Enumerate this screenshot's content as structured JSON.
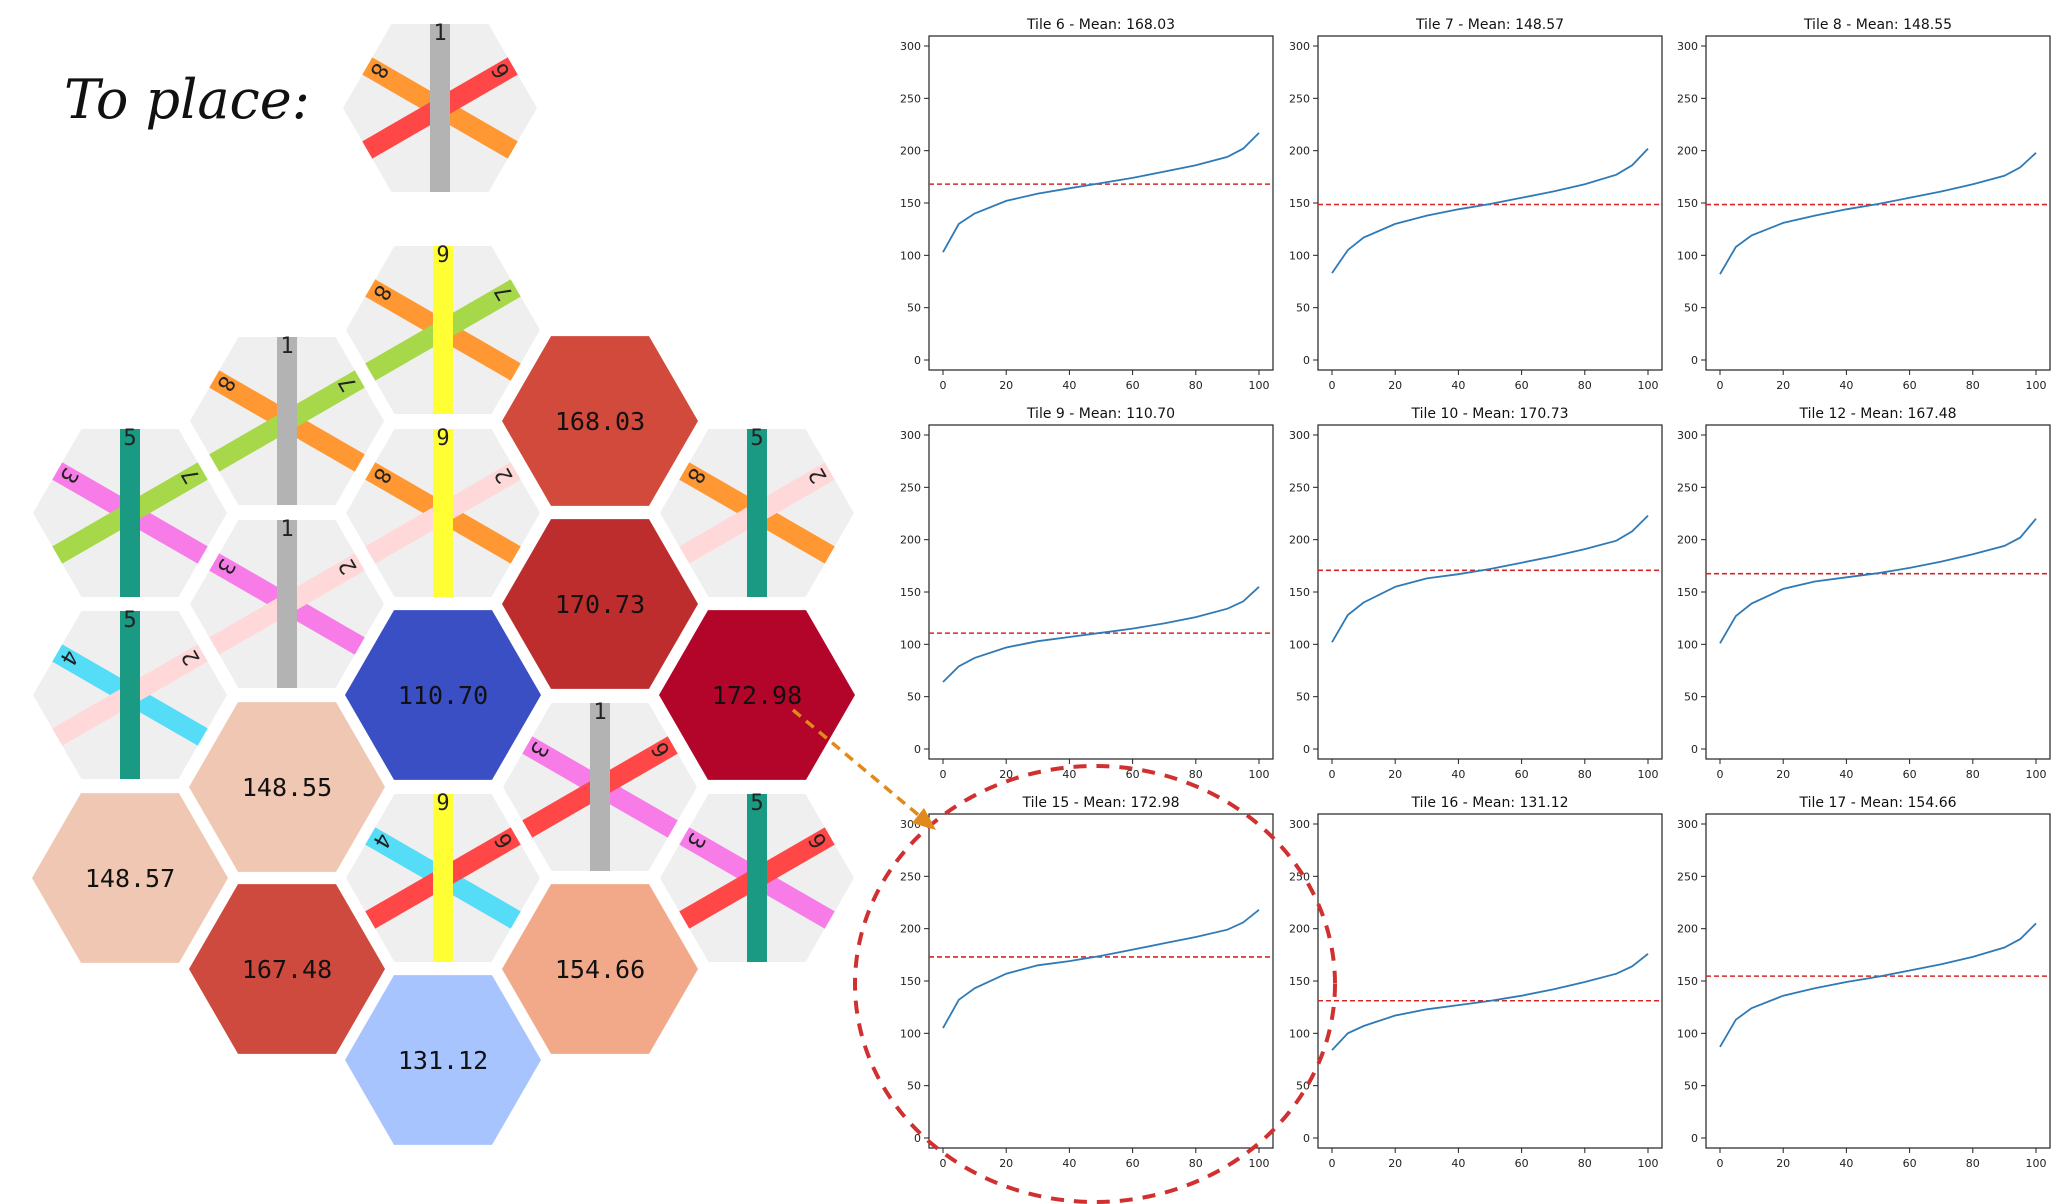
{
  "to_place_label": "To place:",
  "hex_colors": {
    "empty_tile": "#efefef",
    "strip_gray": "#b3b3b3",
    "strip_yellow": "#ffff33",
    "strip_teal": "#1a9a83",
    "strip_orange": "#ff9833",
    "strip_lime": "#a6d84a",
    "strip_pink": "#f77ce8",
    "strip_salmon": "#ffd9d9",
    "strip_red": "#ff4747",
    "strip_cyan": "#55dcf7",
    "mean_110": "#3a4fc4",
    "mean_131": "#a8c4ff",
    "mean_148": "#f0c7b2",
    "mean_154": "#f2a98a",
    "mean_167": "#cf4a3e",
    "mean_168": "#d24a3c",
    "mean_170": "#be2d2d",
    "mean_172": "#b3052a"
  },
  "piece_to_place": {
    "vertical": "1",
    "left_diag": "8",
    "right_diag": "6"
  },
  "board": {
    "strip_tiles": [
      {
        "v": "9",
        "l": "8",
        "r": "7"
      },
      {
        "v": "1",
        "l": "8",
        "r": "7"
      },
      {
        "v": "9",
        "l": "8",
        "r": "2"
      },
      {
        "v": "5",
        "l": "3",
        "r": "7"
      },
      {
        "v": "5",
        "l": "8",
        "r": "2"
      },
      {
        "v": "1",
        "l": "3",
        "r": "2"
      },
      {
        "v": "5",
        "l": "4",
        "r": "2"
      },
      {
        "v": "1",
        "l": "3",
        "r": "6"
      },
      {
        "v": "9",
        "l": "4",
        "r": "6"
      },
      {
        "v": "5",
        "l": "3",
        "r": "6"
      }
    ],
    "mean_tiles": [
      "168.03",
      "170.73",
      "110.70",
      "172.98",
      "148.55",
      "148.57",
      "167.48",
      "154.66",
      "131.12"
    ]
  },
  "chart_data": [
    {
      "type": "line",
      "title": "Tile 6 - Mean: 168.03",
      "mean": 168.03,
      "ylim": [
        0,
        300
      ],
      "xlim": [
        0,
        100
      ],
      "x": [
        0,
        5,
        10,
        20,
        30,
        40,
        50,
        60,
        70,
        80,
        90,
        95,
        100
      ],
      "y": [
        103,
        130,
        140,
        152,
        159,
        164,
        169,
        174,
        180,
        186,
        194,
        202,
        217
      ]
    },
    {
      "type": "line",
      "title": "Tile 7 - Mean: 148.57",
      "mean": 148.57,
      "ylim": [
        0,
        300
      ],
      "xlim": [
        0,
        100
      ],
      "x": [
        0,
        5,
        10,
        20,
        30,
        40,
        50,
        60,
        70,
        80,
        90,
        95,
        100
      ],
      "y": [
        83,
        105,
        117,
        130,
        138,
        144,
        149,
        155,
        161,
        168,
        177,
        186,
        202
      ]
    },
    {
      "type": "line",
      "title": "Tile 8 - Mean: 148.55",
      "mean": 148.55,
      "ylim": [
        0,
        300
      ],
      "xlim": [
        0,
        100
      ],
      "x": [
        0,
        5,
        10,
        20,
        30,
        40,
        50,
        60,
        70,
        80,
        90,
        95,
        100
      ],
      "y": [
        82,
        108,
        119,
        131,
        138,
        144,
        149,
        155,
        161,
        168,
        176,
        184,
        198
      ]
    },
    {
      "type": "line",
      "title": "Tile 9 - Mean: 110.70",
      "mean": 110.7,
      "ylim": [
        0,
        300
      ],
      "xlim": [
        0,
        100
      ],
      "x": [
        0,
        5,
        10,
        20,
        30,
        40,
        50,
        60,
        70,
        80,
        90,
        95,
        100
      ],
      "y": [
        64,
        79,
        87,
        97,
        103,
        107,
        111,
        115,
        120,
        126,
        134,
        141,
        155
      ]
    },
    {
      "type": "line",
      "title": "Tile 10 - Mean: 170.73",
      "mean": 170.73,
      "ylim": [
        0,
        300
      ],
      "xlim": [
        0,
        100
      ],
      "x": [
        0,
        5,
        10,
        20,
        30,
        40,
        50,
        60,
        70,
        80,
        90,
        95,
        100
      ],
      "y": [
        102,
        128,
        140,
        155,
        163,
        167,
        172,
        178,
        184,
        191,
        199,
        208,
        223
      ]
    },
    {
      "type": "line",
      "title": "Tile 12 - Mean: 167.48",
      "mean": 167.48,
      "ylim": [
        0,
        300
      ],
      "xlim": [
        0,
        100
      ],
      "x": [
        0,
        5,
        10,
        20,
        30,
        40,
        50,
        60,
        70,
        80,
        90,
        95,
        100
      ],
      "y": [
        101,
        127,
        139,
        153,
        160,
        164,
        168,
        173,
        179,
        186,
        194,
        202,
        220
      ]
    },
    {
      "type": "line",
      "title": "Tile 15 - Mean: 172.98",
      "mean": 172.98,
      "ylim": [
        0,
        300
      ],
      "xlim": [
        0,
        100
      ],
      "x": [
        0,
        5,
        10,
        20,
        30,
        40,
        50,
        60,
        70,
        80,
        90,
        95,
        100
      ],
      "y": [
        105,
        132,
        143,
        157,
        165,
        169,
        174,
        180,
        186,
        192,
        199,
        206,
        218
      ]
    },
    {
      "type": "line",
      "title": "Tile 16 - Mean: 131.12",
      "mean": 131.12,
      "ylim": [
        0,
        300
      ],
      "xlim": [
        0,
        100
      ],
      "x": [
        0,
        5,
        10,
        20,
        30,
        40,
        50,
        60,
        70,
        80,
        90,
        95,
        100
      ],
      "y": [
        84,
        100,
        107,
        117,
        123,
        127,
        131,
        136,
        142,
        149,
        157,
        164,
        176
      ]
    },
    {
      "type": "line",
      "title": "Tile 17 - Mean: 154.66",
      "mean": 154.66,
      "ylim": [
        0,
        300
      ],
      "xlim": [
        0,
        100
      ],
      "x": [
        0,
        5,
        10,
        20,
        30,
        40,
        50,
        60,
        70,
        80,
        90,
        95,
        100
      ],
      "y": [
        87,
        113,
        124,
        136,
        143,
        149,
        154,
        160,
        166,
        173,
        182,
        190,
        205
      ]
    }
  ],
  "axes": {
    "xticks": [
      0,
      20,
      40,
      60,
      80,
      100
    ],
    "yticks": [
      0,
      50,
      100,
      150,
      200,
      250,
      300
    ]
  },
  "line_colors": {
    "curve": "#2f7ab6",
    "mean": "#d62728",
    "arrow": "#e08a1c",
    "circle": "#d03030"
  }
}
